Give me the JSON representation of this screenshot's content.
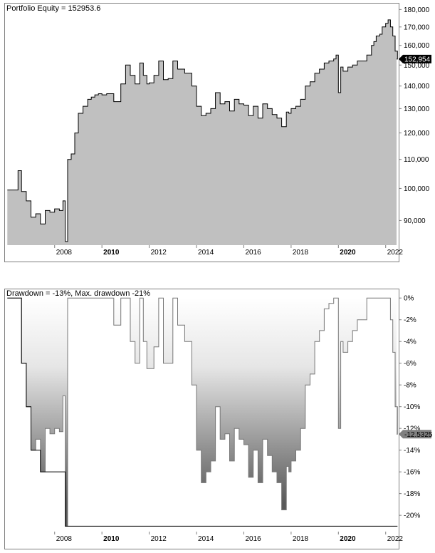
{
  "colors": {
    "fill_top": "#c0c0c0",
    "line_top": "#000000",
    "frame": "#7f7f7f",
    "marker_bg": "#000000",
    "marker_dd_bg": "#808080"
  },
  "equity_panel": {
    "title": "Portfolio Equity = 152953.6",
    "last_value_label": "152,954"
  },
  "drawdown_panel": {
    "title": "Drawdown = -13%, Max. drawdown -21%",
    "last_value_label": "-12.5325"
  },
  "chart_data": [
    {
      "type": "area",
      "title": "Portfolio Equity = 152953.6",
      "x_tick_labels": [
        "2008",
        "2010",
        "2012",
        "2014",
        "2016",
        "2018",
        "2020",
        "2022"
      ],
      "bold_x_ticks": [
        "2010",
        "2020"
      ],
      "y_tick_labels": [
        "180,000",
        "170,000",
        "160,000",
        "150,000",
        "140,000",
        "130,000",
        "120,000",
        "110,000",
        "100,000",
        "90,000"
      ],
      "y_ticks": [
        180000,
        170000,
        160000,
        150000,
        140000,
        130000,
        120000,
        110000,
        100000,
        90000
      ],
      "y_scale": "log",
      "ylim": [
        83000,
        184000
      ],
      "xlim": [
        2005.9,
        2022.55
      ],
      "x": [
        2006.0,
        2006.3,
        2006.45,
        2006.6,
        2006.8,
        2007.0,
        2007.2,
        2007.4,
        2007.6,
        2007.8,
        2008.0,
        2008.2,
        2008.35,
        2008.45,
        2008.55,
        2008.7,
        2008.85,
        2009.0,
        2009.2,
        2009.4,
        2009.55,
        2009.7,
        2009.85,
        2010.0,
        2010.2,
        2010.5,
        2010.8,
        2011.0,
        2011.2,
        2011.4,
        2011.6,
        2011.75,
        2011.9,
        2012.0,
        2012.2,
        2012.4,
        2012.6,
        2012.8,
        2013.0,
        2013.2,
        2013.5,
        2013.8,
        2014.0,
        2014.2,
        2014.4,
        2014.6,
        2014.8,
        2015.0,
        2015.2,
        2015.4,
        2015.6,
        2015.8,
        2016.0,
        2016.2,
        2016.4,
        2016.6,
        2016.8,
        2017.0,
        2017.2,
        2017.4,
        2017.6,
        2017.8,
        2017.9,
        2018.0,
        2018.2,
        2018.4,
        2018.6,
        2018.8,
        2019.0,
        2019.2,
        2019.4,
        2019.6,
        2019.8,
        2019.9,
        2020.0,
        2020.1,
        2020.2,
        2020.4,
        2020.6,
        2020.8,
        2021.0,
        2021.2,
        2021.4,
        2021.5,
        2021.6,
        2021.75,
        2021.85,
        2022.0,
        2022.1,
        2022.2,
        2022.3,
        2022.4,
        2022.5
      ],
      "y": [
        99500,
        99500,
        106000,
        99000,
        96000,
        91000,
        92000,
        89000,
        93000,
        92500,
        93500,
        93000,
        96000,
        84000,
        110000,
        112000,
        120000,
        128000,
        131000,
        134000,
        135000,
        136000,
        136500,
        136000,
        136500,
        133000,
        141000,
        150000,
        145000,
        141000,
        151000,
        145000,
        141000,
        141500,
        145000,
        152000,
        143000,
        143500,
        152000,
        148000,
        146000,
        140000,
        131000,
        127000,
        128000,
        130000,
        137000,
        132000,
        133000,
        129000,
        134000,
        132000,
        131500,
        127000,
        131000,
        126000,
        132000,
        130000,
        127500,
        126000,
        122500,
        128500,
        128000,
        130000,
        131000,
        134000,
        140000,
        142000,
        146000,
        148000,
        151000,
        152000,
        153000,
        155000,
        137000,
        149000,
        147000,
        149000,
        150000,
        152000,
        152000,
        155000,
        160000,
        162000,
        165000,
        166000,
        170000,
        172000,
        174000,
        170000,
        165000,
        157000,
        152954
      ],
      "last_value": 152954
    },
    {
      "type": "area",
      "title": "Drawdown = -13%, Max. drawdown -21%",
      "x_tick_labels": [
        "2008",
        "2010",
        "2012",
        "2014",
        "2016",
        "2018",
        "2020",
        "2022"
      ],
      "bold_x_ticks": [
        "2010",
        "2020"
      ],
      "y_tick_labels": [
        "0%",
        "-2%",
        "-4%",
        "-6%",
        "-8%",
        "-10%",
        "-12%",
        "-14%",
        "-16%",
        "-18%",
        "-20%"
      ],
      "y_ticks": [
        0,
        -2,
        -4,
        -6,
        -8,
        -10,
        -12,
        -14,
        -16,
        -18,
        -20
      ],
      "ylim": [
        -21.5,
        0.8
      ],
      "xlim": [
        2005.9,
        2022.55
      ],
      "x": [
        2006.0,
        2006.3,
        2006.45,
        2006.6,
        2006.8,
        2007.0,
        2007.2,
        2007.4,
        2007.6,
        2007.8,
        2008.0,
        2008.2,
        2008.35,
        2008.45,
        2008.55,
        2008.7,
        2008.85,
        2009.0,
        2009.2,
        2009.4,
        2009.55,
        2009.7,
        2009.85,
        2010.0,
        2010.2,
        2010.5,
        2010.8,
        2011.0,
        2011.2,
        2011.4,
        2011.6,
        2011.75,
        2011.9,
        2012.0,
        2012.2,
        2012.4,
        2012.6,
        2012.8,
        2013.0,
        2013.2,
        2013.5,
        2013.8,
        2014.0,
        2014.2,
        2014.4,
        2014.6,
        2014.8,
        2015.0,
        2015.2,
        2015.4,
        2015.6,
        2015.8,
        2016.0,
        2016.2,
        2016.4,
        2016.6,
        2016.8,
        2017.0,
        2017.2,
        2017.4,
        2017.6,
        2017.8,
        2017.9,
        2018.0,
        2018.2,
        2018.4,
        2018.6,
        2018.8,
        2019.0,
        2019.2,
        2019.4,
        2019.6,
        2019.8,
        2019.9,
        2020.0,
        2020.1,
        2020.2,
        2020.4,
        2020.6,
        2020.8,
        2021.0,
        2021.2,
        2021.4,
        2021.5,
        2021.6,
        2021.75,
        2021.85,
        2022.0,
        2022.1,
        2022.2,
        2022.3,
        2022.4,
        2022.5
      ],
      "y": [
        0,
        0,
        0,
        -6,
        -10,
        -14,
        -13,
        -16,
        -12,
        -12.5,
        -12,
        -12.3,
        -9,
        -21,
        0,
        0,
        0,
        0,
        0,
        0,
        0,
        0,
        0,
        0,
        0,
        -2.5,
        0,
        0,
        -4,
        -6,
        0,
        -4,
        -6.5,
        -6.5,
        -4.5,
        0,
        -6,
        -6,
        0,
        -2.5,
        -4,
        -8,
        -14,
        -17,
        -16,
        -15,
        -10,
        -13,
        -12.5,
        -15,
        -12,
        -13,
        -13.5,
        -16.5,
        -14,
        -17,
        -13,
        -14.5,
        -16,
        -17,
        -19.5,
        -15.5,
        -16,
        -15,
        -14,
        -12,
        -8,
        -7,
        -4,
        -3,
        -1,
        -0.5,
        0,
        0,
        -12,
        -4,
        -5,
        -4,
        -3,
        -2,
        -2,
        0,
        0,
        0,
        0,
        0,
        0,
        0,
        0,
        -2,
        -5,
        -10,
        -12.5325
      ],
      "last_value": -12.5325
    }
  ]
}
